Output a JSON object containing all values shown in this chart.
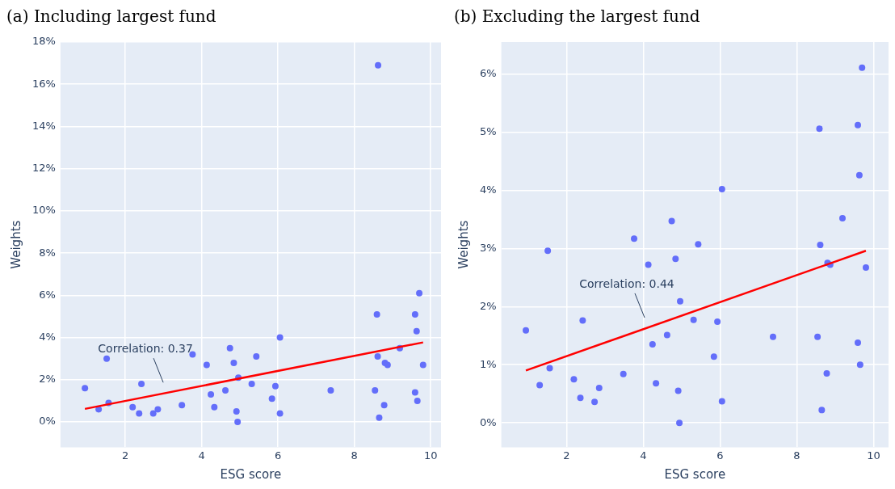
{
  "chart_data": [
    {
      "type": "scatter",
      "title": "(a) Including largest fund",
      "xlabel": "ESG score",
      "ylabel": "Weights",
      "xlim": [
        0.3,
        10.27
      ],
      "xticks": [
        2,
        4,
        6,
        8,
        10
      ],
      "ylim": [
        -1.2,
        18
      ],
      "yticks": [
        {
          "value": 0,
          "label": "0%"
        },
        {
          "value": 2,
          "label": "2%"
        },
        {
          "value": 4,
          "label": "4%"
        },
        {
          "value": 6,
          "label": "6%"
        },
        {
          "value": 8,
          "label": "8%"
        },
        {
          "value": 10,
          "label": "10%"
        },
        {
          "value": 12,
          "label": "12%"
        },
        {
          "value": 14,
          "label": "14%"
        },
        {
          "value": 16,
          "label": "16%"
        },
        {
          "value": 18,
          "label": "18%"
        }
      ],
      "grid": true,
      "legend": false,
      "series": [
        {
          "marker": "circle",
          "color": "#636efa",
          "x": [
            0.94,
            1.51,
            1.3,
            1.56,
            2.19,
            2.36,
            2.42,
            2.73,
            2.85,
            3.48,
            3.76,
            4.13,
            4.24,
            4.33,
            4.62,
            4.74,
            4.84,
            4.91,
            4.96,
            4.94,
            5.31,
            5.43,
            5.84,
            5.93,
            6.05,
            6.05,
            7.38,
            8.54,
            8.59,
            8.61,
            8.65,
            8.78,
            8.8,
            8.87,
            9.19,
            9.59,
            9.63,
            9.59,
            9.65,
            9.8,
            9.7,
            8.62
          ],
          "values": [
            1.6,
            3.0,
            0.6,
            0.9,
            0.7,
            0.4,
            1.8,
            0.4,
            0.6,
            0.8,
            3.2,
            2.7,
            1.3,
            0.7,
            1.5,
            3.5,
            2.8,
            0.5,
            2.1,
            0.0,
            1.8,
            3.1,
            1.1,
            1.7,
            4.0,
            0.4,
            1.5,
            1.5,
            5.1,
            3.1,
            0.2,
            0.8,
            2.8,
            2.7,
            3.5,
            5.1,
            4.3,
            1.4,
            1.0,
            2.7,
            6.1,
            16.9
          ]
        },
        {
          "type": "line",
          "marker": "none",
          "color": "#ff0000",
          "x": [
            0.94,
            9.8
          ],
          "values": [
            0.62,
            3.77
          ]
        }
      ],
      "annotations": [
        "Correlation: 0.37"
      ]
    },
    {
      "type": "scatter",
      "title": "(b) Excluding the largest fund",
      "xlabel": "ESG score",
      "ylabel": "Weights",
      "xlim": [
        0.3,
        10.39
      ],
      "xticks": [
        2,
        4,
        6,
        8,
        10
      ],
      "ylim": [
        -0.42,
        6.55
      ],
      "yticks": [
        {
          "value": 0,
          "label": "0%"
        },
        {
          "value": 1,
          "label": "1%"
        },
        {
          "value": 2,
          "label": "2%"
        },
        {
          "value": 3,
          "label": "3%"
        },
        {
          "value": 4,
          "label": "4%"
        },
        {
          "value": 5,
          "label": "5%"
        },
        {
          "value": 6,
          "label": "6%"
        }
      ],
      "grid": true,
      "legend": false,
      "series": [
        {
          "marker": "circle",
          "color": "#636efa",
          "x": [
            0.94,
            1.51,
            1.3,
            1.56,
            2.19,
            2.36,
            2.42,
            2.73,
            2.85,
            3.48,
            3.76,
            4.13,
            4.24,
            4.33,
            4.62,
            4.74,
            4.84,
            4.91,
            4.96,
            4.94,
            5.31,
            5.43,
            5.84,
            5.93,
            6.05,
            6.05,
            7.38,
            8.54,
            8.59,
            8.61,
            8.65,
            8.78,
            8.8,
            8.87,
            9.19,
            9.59,
            9.63,
            9.59,
            9.65,
            9.8,
            9.7
          ],
          "values": [
            1.59,
            2.96,
            0.65,
            0.94,
            0.75,
            0.43,
            1.76,
            0.36,
            0.6,
            0.84,
            3.17,
            2.72,
            1.35,
            0.68,
            1.51,
            3.47,
            2.82,
            0.55,
            2.09,
            0.0,
            1.77,
            3.07,
            1.14,
            1.74,
            4.02,
            0.37,
            1.48,
            1.48,
            5.06,
            3.06,
            0.22,
            0.85,
            2.75,
            2.72,
            3.52,
            5.12,
            4.26,
            1.38,
            1.0,
            2.67,
            6.11
          ]
        },
        {
          "type": "line",
          "marker": "none",
          "color": "#ff0000",
          "x": [
            0.94,
            9.8
          ],
          "values": [
            0.9,
            2.96
          ]
        }
      ],
      "annotations": [
        "Correlation: 0.44"
      ]
    }
  ]
}
